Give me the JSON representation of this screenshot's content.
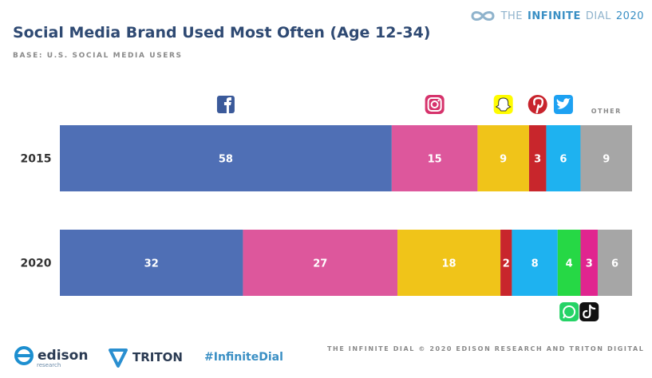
{
  "header": {
    "title": "Social Media Brand Used Most Often (Age 12-34)",
    "subtitle": "BASE: U.S. SOCIAL MEDIA USERS",
    "brand_prefix": "THE",
    "brand_name": "INFINITE",
    "brand_suffix": "DIAL",
    "brand_year": "2020"
  },
  "footer": {
    "edison_name": "edison",
    "edison_sub": "research",
    "triton_name": "TRITON",
    "hashtag": "#InfiniteDial",
    "credit": "THE INFINITE DIAL   © 2020 EDISON RESEARCH AND TRITON DIGITAL"
  },
  "colors": {
    "facebook": "#4f6fb5",
    "instagram": "#dd579c",
    "snapchat": "#f0c419",
    "pinterest": "#c8262c",
    "twitter": "#1eb2f0",
    "whatsapp": "#26d845",
    "tiktok": "#e0258f",
    "other": "#a6a6a6"
  },
  "icons": {
    "facebook": "facebook-icon",
    "instagram": "instagram-icon",
    "snapchat": "snapchat-icon",
    "pinterest": "pinterest-icon",
    "twitter": "twitter-icon",
    "whatsapp": "whatsapp-icon",
    "tiktok": "tiktok-icon"
  },
  "chart_data": {
    "type": "bar",
    "orientation": "horizontal",
    "stacked": true,
    "xlim": [
      0,
      100
    ],
    "other_label": "OTHER",
    "categories": [
      "2015",
      "2020"
    ],
    "series": [
      {
        "key": "facebook",
        "values": [
          58,
          32
        ]
      },
      {
        "key": "instagram",
        "values": [
          15,
          27
        ]
      },
      {
        "key": "snapchat",
        "values": [
          9,
          18
        ]
      },
      {
        "key": "pinterest",
        "values": [
          3,
          2
        ]
      },
      {
        "key": "twitter",
        "values": [
          6,
          8
        ]
      },
      {
        "key": "whatsapp",
        "values": [
          0,
          4
        ]
      },
      {
        "key": "tiktok",
        "values": [
          0,
          3
        ]
      },
      {
        "key": "other",
        "name": "OTHER",
        "values": [
          9,
          6
        ]
      }
    ]
  }
}
